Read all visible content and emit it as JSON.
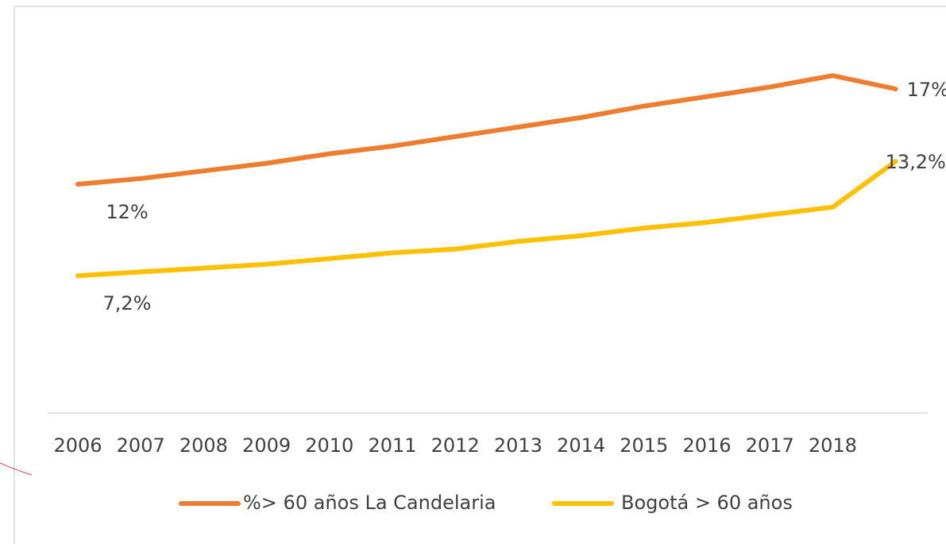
{
  "chart_data": {
    "type": "line",
    "categories": [
      "2006",
      "2007",
      "2008",
      "2009",
      "2010",
      "2011",
      "2012",
      "2013",
      "2014",
      "2015",
      "2016",
      "2017",
      "2018",
      null
    ],
    "series": [
      {
        "name": "%> 60 años La Candelaria",
        "color": "#ED7D31",
        "values": [
          12,
          12.3,
          12.7,
          13.1,
          13.6,
          14.0,
          14.5,
          15.0,
          15.5,
          16.1,
          16.6,
          17.1,
          17.7,
          17
        ],
        "value_labels": [
          "12%",
          null,
          null,
          null,
          null,
          null,
          null,
          null,
          null,
          null,
          null,
          null,
          null,
          "17%"
        ]
      },
      {
        "name": "Bogotá > 60 años",
        "color": "#FFC000",
        "values": [
          7.2,
          7.4,
          7.6,
          7.8,
          8.1,
          8.4,
          8.6,
          9.0,
          9.3,
          9.7,
          10.0,
          10.4,
          10.8,
          13.2
        ],
        "value_labels": [
          "7,2%",
          null,
          null,
          null,
          null,
          null,
          null,
          null,
          null,
          null,
          null,
          null,
          null,
          "13,2%"
        ]
      }
    ],
    "ylim": [
      0,
      20
    ],
    "legend": "bottom"
  }
}
